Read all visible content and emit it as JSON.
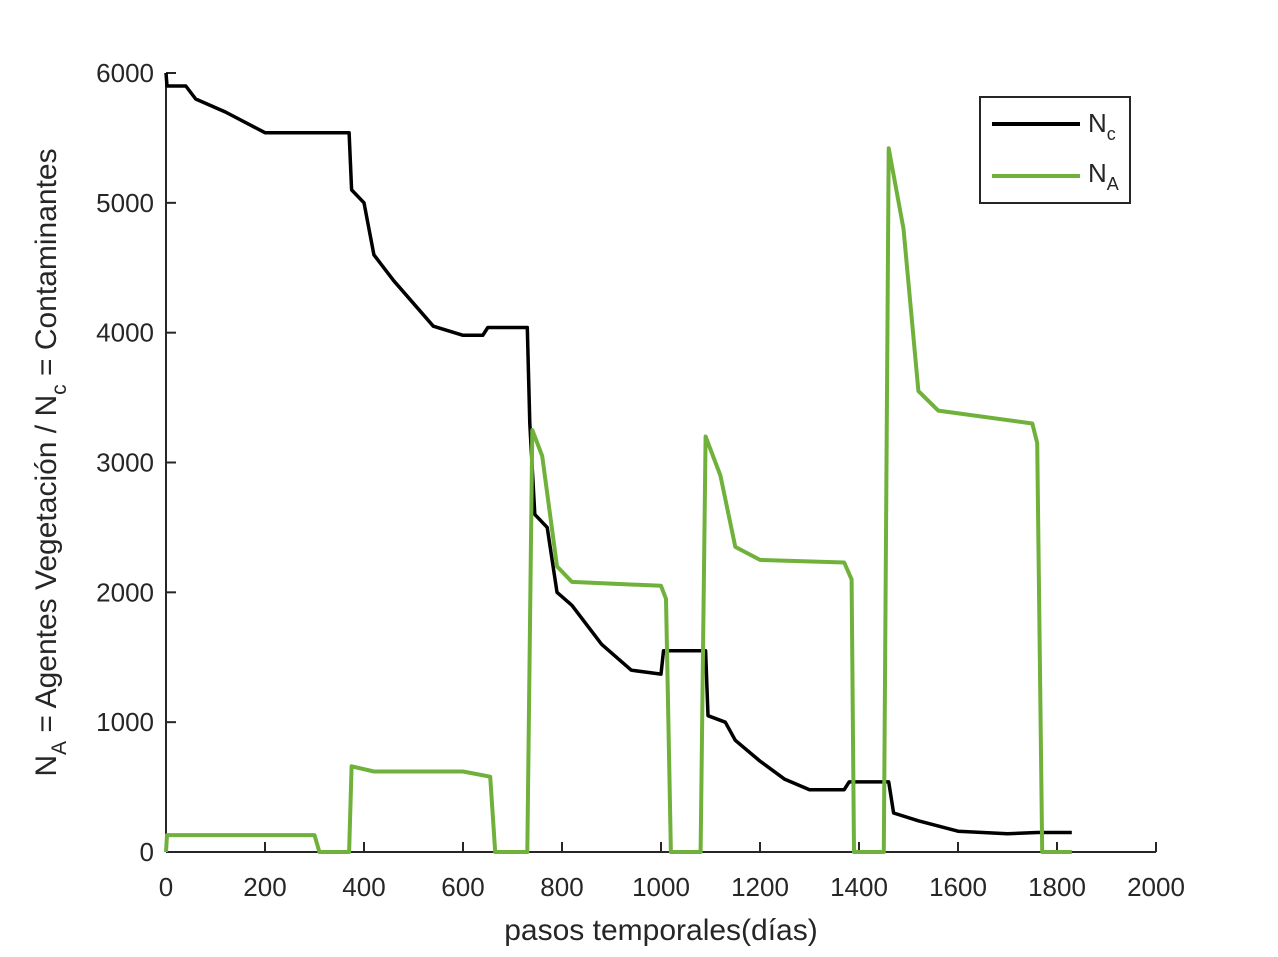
{
  "chart_data": {
    "type": "line",
    "xlabel": "pasos temporales(días)",
    "ylabel": {
      "a_main": "N",
      "a_sub": "A",
      "mid": " = Agentes Vegetación  /  N",
      "c_sub": "c",
      "end": " = Contaminantes"
    },
    "xlim": [
      0,
      2000
    ],
    "ylim": [
      0,
      6000
    ],
    "xticks": [
      "0",
      "200",
      "400",
      "600",
      "800",
      "1000",
      "1200",
      "1400",
      "1600",
      "1800",
      "2000"
    ],
    "yticks": [
      "0",
      "1000",
      "2000",
      "3000",
      "4000",
      "5000",
      "6000"
    ],
    "grid": false,
    "legend_position": "top-right",
    "series": [
      {
        "name": "N",
        "name_sub": "c",
        "color": "#000000",
        "points": [
          [
            0,
            6000
          ],
          [
            2,
            5900
          ],
          [
            40,
            5900
          ],
          [
            60,
            5800
          ],
          [
            120,
            5700
          ],
          [
            200,
            5540
          ],
          [
            300,
            5540
          ],
          [
            370,
            5540
          ],
          [
            375,
            5100
          ],
          [
            400,
            5000
          ],
          [
            420,
            4600
          ],
          [
            460,
            4400
          ],
          [
            540,
            4050
          ],
          [
            600,
            3980
          ],
          [
            640,
            3980
          ],
          [
            650,
            4040
          ],
          [
            730,
            4040
          ],
          [
            735,
            3300
          ],
          [
            745,
            2600
          ],
          [
            770,
            2500
          ],
          [
            790,
            2000
          ],
          [
            820,
            1900
          ],
          [
            880,
            1600
          ],
          [
            940,
            1400
          ],
          [
            1000,
            1370
          ],
          [
            1005,
            1550
          ],
          [
            1090,
            1550
          ],
          [
            1095,
            1050
          ],
          [
            1130,
            1000
          ],
          [
            1150,
            860
          ],
          [
            1200,
            700
          ],
          [
            1250,
            560
          ],
          [
            1300,
            480
          ],
          [
            1370,
            480
          ],
          [
            1380,
            540
          ],
          [
            1460,
            540
          ],
          [
            1470,
            300
          ],
          [
            1520,
            240
          ],
          [
            1600,
            160
          ],
          [
            1700,
            140
          ],
          [
            1760,
            150
          ],
          [
            1830,
            150
          ]
        ]
      },
      {
        "name": "N",
        "name_sub": "A",
        "color": "#6fb13a",
        "points": [
          [
            0,
            0
          ],
          [
            2,
            130
          ],
          [
            300,
            130
          ],
          [
            310,
            0
          ],
          [
            370,
            0
          ],
          [
            375,
            660
          ],
          [
            420,
            620
          ],
          [
            600,
            620
          ],
          [
            655,
            580
          ],
          [
            665,
            0
          ],
          [
            730,
            0
          ],
          [
            740,
            3250
          ],
          [
            760,
            3050
          ],
          [
            790,
            2200
          ],
          [
            820,
            2080
          ],
          [
            1000,
            2050
          ],
          [
            1010,
            1950
          ],
          [
            1020,
            0
          ],
          [
            1080,
            0
          ],
          [
            1090,
            3200
          ],
          [
            1120,
            2900
          ],
          [
            1150,
            2350
          ],
          [
            1200,
            2250
          ],
          [
            1370,
            2230
          ],
          [
            1385,
            2100
          ],
          [
            1390,
            0
          ],
          [
            1450,
            0
          ],
          [
            1460,
            5420
          ],
          [
            1490,
            4800
          ],
          [
            1520,
            3550
          ],
          [
            1560,
            3400
          ],
          [
            1750,
            3300
          ],
          [
            1760,
            3150
          ],
          [
            1770,
            0
          ],
          [
            1830,
            0
          ]
        ]
      }
    ]
  }
}
